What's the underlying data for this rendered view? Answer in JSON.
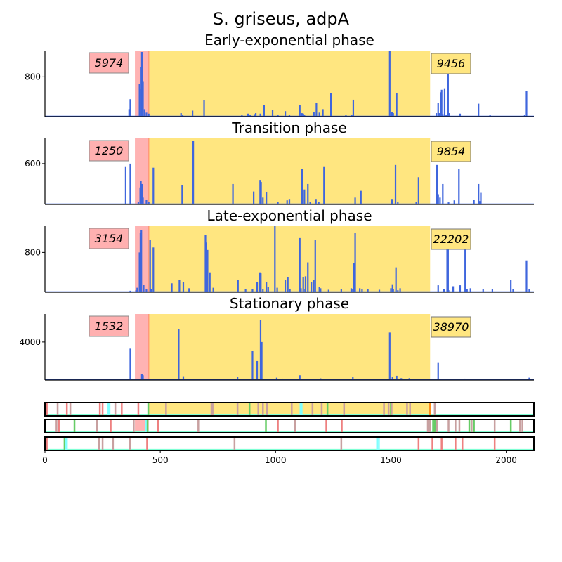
{
  "chart_data": {
    "type": "line",
    "suptitle": "S. griseus, adpA",
    "xlim": [
      0,
      2120
    ],
    "x_ticks": [
      0,
      500,
      1000,
      1500,
      2000
    ],
    "red_region": [
      390,
      450
    ],
    "yellow_region": [
      450,
      1670
    ],
    "panels": [
      {
        "title": "Early-exponential phase",
        "left_count": "5974",
        "right_count": "9456",
        "ymax": 1300,
        "yticks": [
          800
        ],
        "peaks": [
          [
            365,
            150
          ],
          [
            370,
            350
          ],
          [
            410,
            650
          ],
          [
            412,
            550
          ],
          [
            418,
            1000
          ],
          [
            420,
            1300
          ],
          [
            422,
            1300
          ],
          [
            423,
            1200
          ],
          [
            425,
            700
          ],
          [
            432,
            150
          ],
          [
            440,
            80
          ],
          [
            450,
            60
          ],
          [
            590,
            70
          ],
          [
            597,
            40
          ],
          [
            640,
            120
          ],
          [
            690,
            330
          ],
          [
            854,
            40
          ],
          [
            880,
            60
          ],
          [
            890,
            40
          ],
          [
            910,
            50
          ],
          [
            914,
            70
          ],
          [
            934,
            60
          ],
          [
            950,
            230
          ],
          [
            987,
            130
          ],
          [
            1010,
            30
          ],
          [
            1042,
            110
          ],
          [
            1060,
            40
          ],
          [
            1105,
            240
          ],
          [
            1114,
            70
          ],
          [
            1120,
            60
          ],
          [
            1125,
            40
          ],
          [
            1166,
            90
          ],
          [
            1177,
            280
          ],
          [
            1190,
            80
          ],
          [
            1205,
            150
          ],
          [
            1240,
            480
          ],
          [
            1305,
            40
          ],
          [
            1330,
            40
          ],
          [
            1337,
            340
          ],
          [
            1495,
            1450
          ],
          [
            1505,
            90
          ],
          [
            1510,
            70
          ],
          [
            1525,
            480
          ],
          [
            1697,
            70
          ],
          [
            1705,
            280
          ],
          [
            1710,
            70
          ],
          [
            1718,
            490
          ],
          [
            1720,
            540
          ],
          [
            1725,
            50
          ],
          [
            1733,
            570
          ],
          [
            1740,
            30
          ],
          [
            1748,
            850
          ],
          [
            1752,
            70
          ],
          [
            1800,
            60
          ],
          [
            1880,
            260
          ],
          [
            1930,
            30
          ],
          [
            2080,
            30
          ],
          [
            2088,
            520
          ]
        ]
      },
      {
        "title": "Transition phase",
        "left_count": "1250",
        "right_count": "9854",
        "ymax": 950,
        "yticks": [
          600
        ],
        "peaks": [
          [
            350,
            550
          ],
          [
            370,
            600
          ],
          [
            405,
            40
          ],
          [
            413,
            250
          ],
          [
            416,
            350
          ],
          [
            420,
            300
          ],
          [
            425,
            100
          ],
          [
            440,
            70
          ],
          [
            450,
            40
          ],
          [
            470,
            540
          ],
          [
            595,
            280
          ],
          [
            643,
            940
          ],
          [
            815,
            300
          ],
          [
            905,
            190
          ],
          [
            933,
            360
          ],
          [
            937,
            330
          ],
          [
            945,
            100
          ],
          [
            960,
            180
          ],
          [
            1010,
            40
          ],
          [
            1050,
            60
          ],
          [
            1060,
            80
          ],
          [
            1115,
            520
          ],
          [
            1125,
            220
          ],
          [
            1140,
            300
          ],
          [
            1150,
            40
          ],
          [
            1175,
            80
          ],
          [
            1187,
            40
          ],
          [
            1210,
            550
          ],
          [
            1345,
            100
          ],
          [
            1370,
            200
          ],
          [
            1505,
            80
          ],
          [
            1520,
            580
          ],
          [
            1530,
            40
          ],
          [
            1610,
            40
          ],
          [
            1620,
            400
          ],
          [
            1700,
            580
          ],
          [
            1705,
            150
          ],
          [
            1713,
            100
          ],
          [
            1725,
            300
          ],
          [
            1750,
            30
          ],
          [
            1775,
            60
          ],
          [
            1795,
            520
          ],
          [
            1860,
            70
          ],
          [
            1880,
            300
          ],
          [
            1885,
            50
          ],
          [
            1890,
            170
          ],
          [
            2015,
            10
          ]
        ]
      },
      {
        "title": "Late-exponential phase",
        "left_count": "3154",
        "right_count": "22202",
        "ymax": 1300,
        "yticks": [
          800
        ],
        "peaks": [
          [
            370,
            30
          ],
          [
            395,
            40
          ],
          [
            400,
            90
          ],
          [
            410,
            800
          ],
          [
            414,
            1200
          ],
          [
            418,
            1250
          ],
          [
            428,
            150
          ],
          [
            440,
            60
          ],
          [
            456,
            1050
          ],
          [
            460,
            60
          ],
          [
            470,
            900
          ],
          [
            550,
            180
          ],
          [
            583,
            250
          ],
          [
            600,
            200
          ],
          [
            625,
            80
          ],
          [
            696,
            1150
          ],
          [
            700,
            1000
          ],
          [
            705,
            850
          ],
          [
            715,
            400
          ],
          [
            730,
            90
          ],
          [
            837,
            250
          ],
          [
            870,
            70
          ],
          [
            900,
            60
          ],
          [
            920,
            200
          ],
          [
            932,
            400
          ],
          [
            936,
            380
          ],
          [
            945,
            60
          ],
          [
            960,
            200
          ],
          [
            968,
            100
          ],
          [
            997,
            1360
          ],
          [
            1007,
            90
          ],
          [
            1042,
            250
          ],
          [
            1053,
            300
          ],
          [
            1062,
            60
          ],
          [
            1105,
            1090
          ],
          [
            1110,
            80
          ],
          [
            1120,
            300
          ],
          [
            1128,
            60
          ],
          [
            1130,
            320
          ],
          [
            1140,
            600
          ],
          [
            1155,
            200
          ],
          [
            1165,
            250
          ],
          [
            1172,
            1060
          ],
          [
            1190,
            100
          ],
          [
            1195,
            80
          ],
          [
            1230,
            50
          ],
          [
            1285,
            70
          ],
          [
            1328,
            80
          ],
          [
            1335,
            60
          ],
          [
            1340,
            580
          ],
          [
            1345,
            1190
          ],
          [
            1365,
            80
          ],
          [
            1375,
            60
          ],
          [
            1400,
            70
          ],
          [
            1450,
            50
          ],
          [
            1500,
            80
          ],
          [
            1507,
            160
          ],
          [
            1510,
            60
          ],
          [
            1522,
            500
          ],
          [
            1530,
            40
          ],
          [
            1540,
            80
          ],
          [
            1705,
            140
          ],
          [
            1730,
            70
          ],
          [
            1744,
            1050
          ],
          [
            1748,
            890
          ],
          [
            1750,
            40
          ],
          [
            1770,
            120
          ],
          [
            1800,
            140
          ],
          [
            1822,
            1000
          ],
          [
            1830,
            60
          ],
          [
            1845,
            80
          ],
          [
            1900,
            70
          ],
          [
            1940,
            60
          ],
          [
            2020,
            250
          ],
          [
            2030,
            60
          ],
          [
            2088,
            640
          ],
          [
            2100,
            60
          ]
        ]
      },
      {
        "title": "Stationary phase",
        "left_count": "1532",
        "right_count": "38970",
        "ymax": 6800,
        "yticks": [
          4000
        ],
        "peaks": [
          [
            370,
            3300
          ],
          [
            420,
            600
          ],
          [
            425,
            500
          ],
          [
            580,
            5400
          ],
          [
            600,
            400
          ],
          [
            835,
            300
          ],
          [
            900,
            3100
          ],
          [
            920,
            2000
          ],
          [
            935,
            6300
          ],
          [
            940,
            4000
          ],
          [
            1005,
            250
          ],
          [
            1030,
            150
          ],
          [
            1105,
            500
          ],
          [
            1195,
            180
          ],
          [
            1335,
            300
          ],
          [
            1495,
            5000
          ],
          [
            1507,
            300
          ],
          [
            1525,
            450
          ],
          [
            1545,
            200
          ],
          [
            1580,
            200
          ],
          [
            1705,
            1800
          ],
          [
            1730,
            100
          ],
          [
            1770,
            70
          ],
          [
            1820,
            150
          ],
          [
            2100,
            250
          ]
        ]
      }
    ],
    "tracks": [
      {
        "frame_color": "#000000",
        "red_box": false,
        "yellow_box": true,
        "orange_line": 1670,
        "marks": [
          [
            8,
            "#ee8080"
          ],
          [
            55,
            "#c8a0a0"
          ],
          [
            95,
            "#ee8080"
          ],
          [
            110,
            "#c8a0a0"
          ],
          [
            238,
            "#ee8080"
          ],
          [
            250,
            "#ee8080"
          ],
          [
            275,
            "#80ffff"
          ],
          [
            280,
            "#80ffff"
          ],
          [
            305,
            "#c8a0a0"
          ],
          [
            333,
            "#ee8080"
          ],
          [
            405,
            "#ee8080"
          ],
          [
            448,
            "#66cc66"
          ],
          [
            525,
            "#c8a0a0"
          ],
          [
            722,
            "#c8a0a0"
          ],
          [
            727,
            "#c8a0a0"
          ],
          [
            835,
            "#c8a0a0"
          ],
          [
            887,
            "#66cc66"
          ],
          [
            925,
            "#c8a0a0"
          ],
          [
            945,
            "#c8a0a0"
          ],
          [
            963,
            "#c8a0a0"
          ],
          [
            1070,
            "#c8a0a0"
          ],
          [
            1108,
            "#80ffff"
          ],
          [
            1113,
            "#80ffff"
          ],
          [
            1160,
            "#c8a0a0"
          ],
          [
            1200,
            "#c8a0a0"
          ],
          [
            1225,
            "#66cc66"
          ],
          [
            1297,
            "#c8a0a0"
          ],
          [
            1470,
            "#c8a0a0"
          ],
          [
            1490,
            "#c8a0a0"
          ],
          [
            1500,
            "#66cc66"
          ],
          [
            1503,
            "#c8a0a0"
          ],
          [
            1570,
            "#c8a0a0"
          ],
          [
            1583,
            "#c8a0a0"
          ],
          [
            1690,
            "#c8a0a0"
          ]
        ]
      },
      {
        "frame_color": "#000000",
        "red_box": true,
        "yellow_box": false,
        "orange_line": null,
        "marks": [
          [
            50,
            "#c8a0a0"
          ],
          [
            60,
            "#ee8080"
          ],
          [
            128,
            "#66cc66"
          ],
          [
            225,
            "#c8a0a0"
          ],
          [
            285,
            "#ee8080"
          ],
          [
            385,
            "#c8a0a0"
          ],
          [
            438,
            "#80ffff"
          ],
          [
            445,
            "#66cc66"
          ],
          [
            490,
            "#ee8080"
          ],
          [
            665,
            "#c8a0a0"
          ],
          [
            958,
            "#66cc66"
          ],
          [
            1010,
            "#ee8080"
          ],
          [
            1085,
            "#c8a0a0"
          ],
          [
            1220,
            "#ee8080"
          ],
          [
            1287,
            "#ee8080"
          ],
          [
            1660,
            "#c8a0a0"
          ],
          [
            1670,
            "#c8a0a0"
          ],
          [
            1683,
            "#66cc66"
          ],
          [
            1690,
            "#66cc66"
          ],
          [
            1700,
            "#c8a0a0"
          ],
          [
            1750,
            "#c8a0a0"
          ],
          [
            1780,
            "#c8a0a0"
          ],
          [
            1797,
            "#c8a0a0"
          ],
          [
            1840,
            "#66cc66"
          ],
          [
            1850,
            "#c8a0a0"
          ],
          [
            1860,
            "#66cc66"
          ],
          [
            1950,
            "#c8a0a0"
          ],
          [
            2020,
            "#66cc66"
          ],
          [
            2060,
            "#c8a0a0"
          ],
          [
            2070,
            "#c8a0a0"
          ]
        ]
      },
      {
        "frame_color": "#000000",
        "red_box": false,
        "yellow_box": false,
        "orange_line": null,
        "marks": [
          [
            8,
            "#ee8080"
          ],
          [
            85,
            "#66cc66"
          ],
          [
            90,
            "#80ffff"
          ],
          [
            95,
            "#80ffff"
          ],
          [
            235,
            "#c8a0a0"
          ],
          [
            250,
            "#c8a0a0"
          ],
          [
            295,
            "#c8a0a0"
          ],
          [
            368,
            "#c8a0a0"
          ],
          [
            443,
            "#ee8080"
          ],
          [
            822,
            "#c8a0a0"
          ],
          [
            1285,
            "#c8a0a0"
          ],
          [
            1440,
            "#80ffff"
          ],
          [
            1448,
            "#80ffff"
          ],
          [
            1620,
            "#ee8080"
          ],
          [
            1680,
            "#ee8080"
          ],
          [
            1720,
            "#ee8080"
          ],
          [
            1780,
            "#ee8080"
          ],
          [
            1810,
            "#ee8080"
          ],
          [
            1950,
            "#ee8080"
          ]
        ]
      }
    ],
    "colors": {
      "line": "#3f66dd",
      "red_fill": "#ffb3b3",
      "yellow_fill": "#ffe680",
      "orange": "#ff8c1a",
      "red_box_fill": "#ffb0b0",
      "yellow_box_fill": "#ffe680",
      "cyan_baseline": "#7fffd4"
    }
  }
}
